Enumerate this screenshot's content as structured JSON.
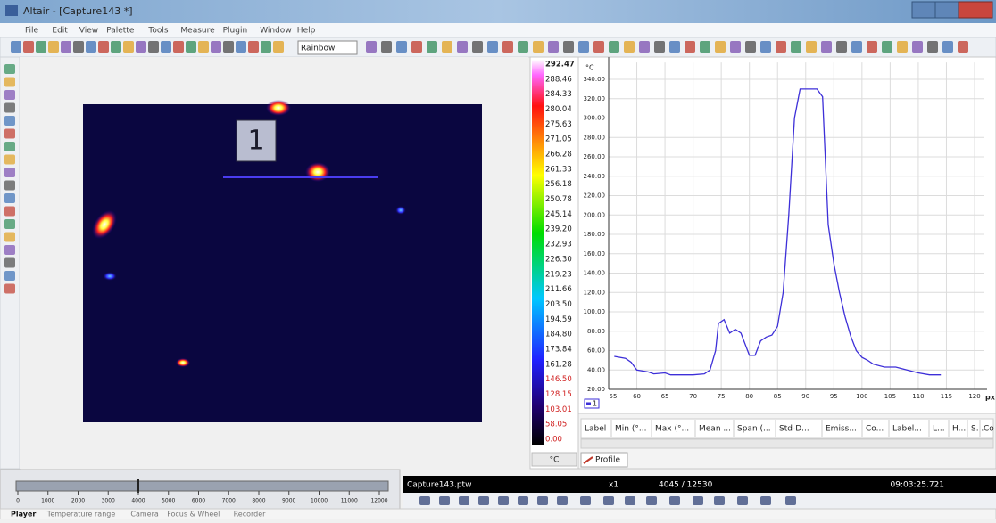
{
  "window": {
    "title": "Altair - [Capture143 *]"
  },
  "menu": [
    "File",
    "Edit",
    "View",
    "Palette",
    "Tools",
    "Measure",
    "Plugin",
    "Window",
    "Help"
  ],
  "toolbar": {
    "palette": "Rainbow"
  },
  "image": {
    "roi_label": "1"
  },
  "palette_scale": {
    "labels": [
      "292.47",
      "288.46",
      "284.33",
      "280.04",
      "275.63",
      "271.05",
      "266.28",
      "261.33",
      "256.18",
      "250.78",
      "245.14",
      "239.20",
      "232.93",
      "226.30",
      "219.23",
      "211.66",
      "203.50",
      "194.59",
      "184.80",
      "173.84",
      "161.28",
      "146.50",
      "128.15",
      "103.01",
      "58.05",
      "0.00"
    ],
    "unit": "°C"
  },
  "chart_data": {
    "type": "line",
    "y_unit": "°C",
    "x_unit": "px",
    "x": [
      56,
      58,
      59,
      60,
      62,
      63,
      65,
      66,
      68,
      70,
      72,
      73,
      74,
      74.5,
      75.5,
      76.5,
      77.5,
      78.5,
      80,
      81,
      82,
      83,
      84,
      85,
      86,
      87,
      88,
      89,
      90,
      91,
      92,
      93,
      94,
      95,
      96,
      97,
      98,
      99,
      100,
      101,
      102,
      104,
      106,
      108,
      110,
      112,
      114
    ],
    "series": [
      {
        "name": "1",
        "color": "#3d2fd8",
        "values": [
          54,
          52,
          48,
          40,
          38,
          36,
          37,
          35,
          35,
          35,
          36,
          40,
          60,
          88,
          92,
          78,
          82,
          78,
          55,
          55,
          70,
          74,
          76,
          85,
          120,
          200,
          300,
          330,
          330,
          330,
          330,
          322,
          190,
          150,
          120,
          95,
          75,
          60,
          53,
          50,
          46,
          43,
          43,
          40,
          37,
          35,
          35
        ]
      }
    ],
    "xlim": [
      55,
      120
    ],
    "ylim": [
      20,
      350
    ],
    "xticks": [
      55,
      60,
      65,
      70,
      75,
      80,
      85,
      90,
      95,
      100,
      105,
      110,
      115,
      120
    ],
    "yticks": [
      {
        "value": 20,
        "label": "20.00"
      },
      {
        "value": 40,
        "label": "40.00"
      },
      {
        "value": 60,
        "label": "60.00"
      },
      {
        "value": 80,
        "label": "80.00"
      },
      {
        "value": 100,
        "label": "100.00"
      },
      {
        "value": 120,
        "label": "120.00"
      },
      {
        "value": 140,
        "label": "140.00"
      },
      {
        "value": 160,
        "label": "160.00"
      },
      {
        "value": 180,
        "label": "180.00"
      },
      {
        "value": 200,
        "label": "200.00"
      },
      {
        "value": 220,
        "label": "220.00"
      },
      {
        "value": 240,
        "label": "240.00"
      },
      {
        "value": 260,
        "label": "260.00"
      },
      {
        "value": 280,
        "label": "280.00"
      },
      {
        "value": 300,
        "label": "300.00"
      },
      {
        "value": 320,
        "label": "320.00"
      },
      {
        "value": 340,
        "label": "340.00"
      }
    ],
    "grid": true
  },
  "table": {
    "headers": [
      "Label",
      "Min (°...",
      "Max (°...",
      "Mean ...",
      "Span (...",
      "Std-D...",
      "Emiss...",
      "Co...",
      "Label...",
      "L...",
      "H...",
      "S...",
      "Co"
    ]
  },
  "tabs": {
    "profile": "Profile"
  },
  "timeline": {
    "ticks": [
      0,
      1000,
      2000,
      3000,
      4000,
      5000,
      6000,
      7000,
      8000,
      9000,
      10000,
      11000,
      12000
    ]
  },
  "player": {
    "file": "Capture143.ptw",
    "speed": "x1",
    "frame": "4045 / 12530",
    "time": "09:03:25.721"
  },
  "bottom_tabs": [
    "Player",
    "Temperature range",
    "Camera",
    "Focus & Wheel",
    "Recorder"
  ]
}
